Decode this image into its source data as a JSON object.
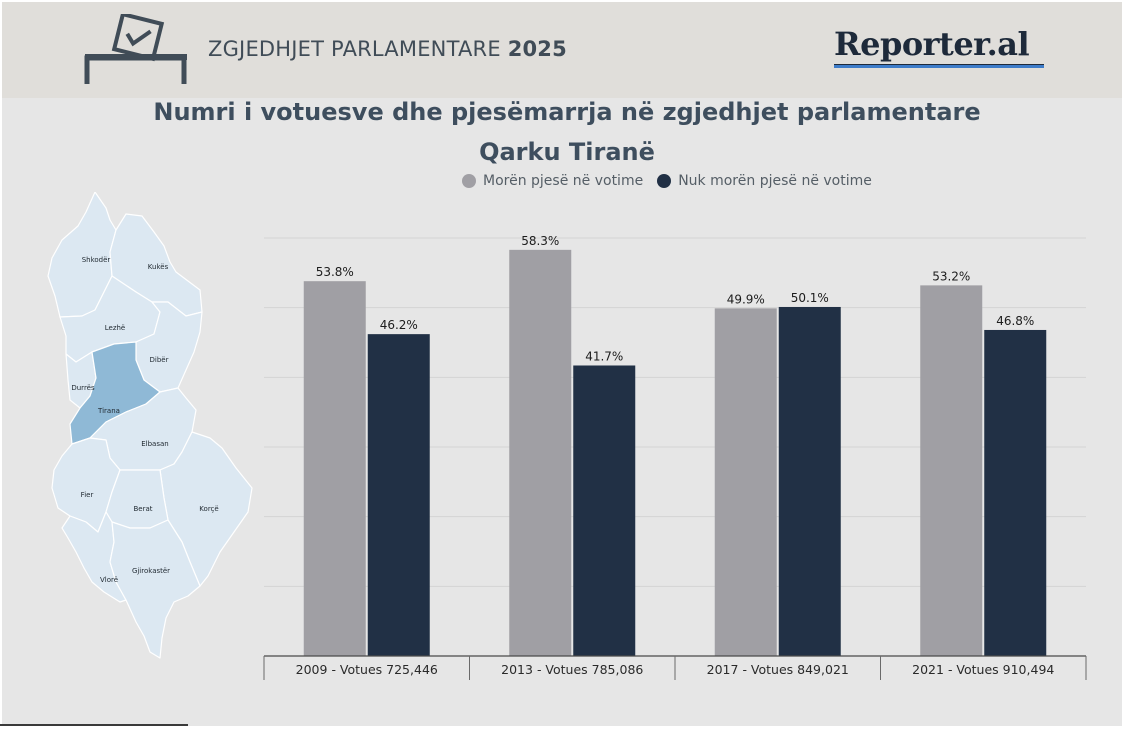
{
  "header": {
    "title": "ZGJEDHJET PARLAMENTARE",
    "year": "2025",
    "brand": "Reporter.al"
  },
  "chart_data": {
    "type": "bar",
    "title": "Numri i votuesve dhe pjesëmarrja në zgjedhjet parlamentare",
    "subtitle": "Qarku Tiranë",
    "categories": [
      "2009 - Votues 725,446",
      "2013 - Votues 785,086",
      "2017 - Votues 849,021",
      "2021 - Votues 910,494"
    ],
    "series": [
      {
        "name": "Morën pjesë në votime",
        "values": [
          53.8,
          58.3,
          49.9,
          53.2
        ],
        "labels": [
          "53.8%",
          "58.3%",
          "49.9%",
          "53.2%"
        ],
        "color": "#a09fa4"
      },
      {
        "name": "Nuk morën pjesë në votime",
        "values": [
          46.2,
          41.7,
          50.1,
          46.8
        ],
        "labels": [
          "46.2%",
          "41.7%",
          "50.1%",
          "46.8%"
        ],
        "color": "#213045"
      }
    ],
    "ylim": [
      0,
      60
    ],
    "grid": true,
    "legend_position": "top-center",
    "xlabel": "",
    "ylabel": ""
  },
  "map": {
    "labels": [
      "Shkodër",
      "Kukës",
      "Lezhë",
      "Dibër",
      "Durrës",
      "Tirana",
      "Elbasan",
      "Fier",
      "Berat",
      "Korçë",
      "Gjirokastër",
      "Vlorë"
    ],
    "highlighted": "Tirana",
    "highlight_color": "#8fb9d6",
    "region_color": "#dce8f2"
  }
}
